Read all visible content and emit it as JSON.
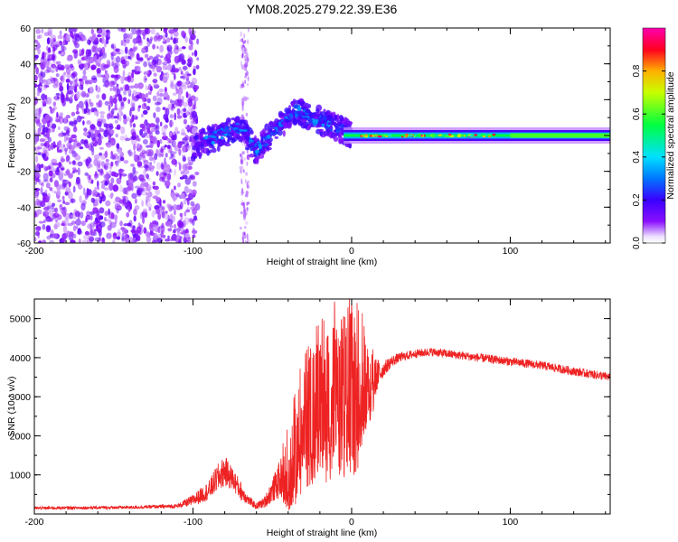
{
  "title": "YM08.2025.279.22.39.E36",
  "chart_data": [
    {
      "type": "heatmap",
      "name": "spectrogram",
      "xlabel": "Height of straight line (km)",
      "ylabel": "Frequency (Hz)",
      "xlim": [
        -200,
        163
      ],
      "ylim": [
        -60,
        60
      ],
      "xticks": [
        -200,
        -100,
        0,
        100
      ],
      "yticks": [
        -60,
        -40,
        -20,
        0,
        20,
        40,
        60
      ],
      "colorbar": {
        "label": "Normalized spectral amplitude",
        "range": [
          0,
          1
        ],
        "ticks": [
          "0.0",
          "0.2",
          "0.4",
          "0.6",
          "0.8"
        ],
        "tick_values": [
          0.0,
          0.2,
          0.4,
          0.6,
          0.8
        ],
        "colormap": [
          "#ffffff",
          "#7f00ff",
          "#0000ff",
          "#00ffff",
          "#00ff00",
          "#ffff00",
          "#ff0000",
          "#ff00ff"
        ]
      },
      "regions": [
        {
          "name": "scattered-noise",
          "x_range": [
            -200,
            -100
          ],
          "freq_range": [
            -60,
            60
          ],
          "amplitude": [
            0.05,
            0.15
          ]
        },
        {
          "name": "noise-band",
          "x_range": [
            -70,
            -65
          ],
          "freq_range": [
            -60,
            60
          ],
          "amplitude": [
            0.05,
            0.1
          ]
        },
        {
          "name": "wavy-signal",
          "x_range": [
            -100,
            0
          ],
          "freq_center": [
            -10,
            15
          ],
          "amplitude": [
            0.15,
            0.35
          ]
        },
        {
          "name": "dc-line",
          "x_range": [
            0,
            163
          ],
          "freq_center": 0,
          "amplitude": [
            0.4,
            0.95
          ]
        }
      ]
    },
    {
      "type": "line",
      "name": "snr",
      "xlabel": "Height of straight line (km)",
      "ylabel": "SNR (10 * v/v)",
      "xlim": [
        -200,
        163
      ],
      "ylim": [
        0,
        5500
      ],
      "xticks": [
        -200,
        -100,
        0,
        100
      ],
      "yticks": [
        1000,
        2000,
        3000,
        4000,
        5000
      ],
      "color": "#ee2222",
      "x": [
        -200,
        -170,
        -140,
        -110,
        -100,
        -90,
        -85,
        -80,
        -75,
        -70,
        -65,
        -60,
        -55,
        -50,
        -45,
        -40,
        -35,
        -30,
        -25,
        -20,
        -15,
        -10,
        -5,
        0,
        5,
        10,
        15,
        20,
        25,
        30,
        40,
        50,
        60,
        80,
        100,
        120,
        140,
        163
      ],
      "values": [
        150,
        160,
        170,
        200,
        350,
        600,
        900,
        1100,
        900,
        600,
        350,
        200,
        300,
        600,
        900,
        1200,
        1900,
        2400,
        2700,
        2900,
        3000,
        3200,
        3300,
        3300,
        3300,
        3300,
        3500,
        3700,
        3900,
        4000,
        4100,
        4150,
        4100,
        4000,
        3900,
        3800,
        3650,
        3500
      ],
      "noise_amplitude": [
        40,
        40,
        40,
        50,
        150,
        250,
        350,
        400,
        300,
        250,
        120,
        80,
        150,
        300,
        500,
        800,
        1200,
        1300,
        1400,
        1500,
        1600,
        1700,
        1800,
        1800,
        1500,
        1000,
        500,
        200,
        150,
        120,
        110,
        110,
        110,
        110,
        110,
        110,
        110,
        110
      ]
    }
  ]
}
